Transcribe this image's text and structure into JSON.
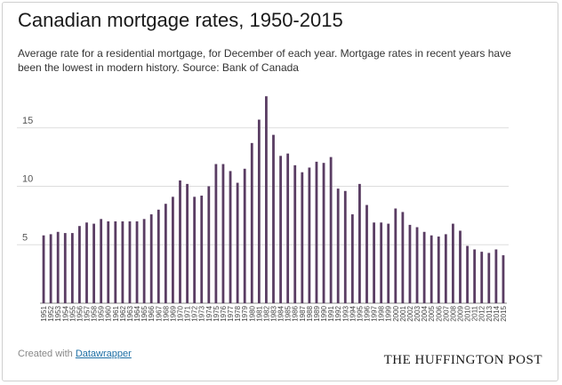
{
  "header": {
    "title": "Canadian mortgage rates, 1950-2015",
    "subtitle": "Average rate for a residential mortgage, for December of each year. Mortgage rates in recent years have been the lowest in modern history. Source: Bank of Canada"
  },
  "footer": {
    "created_with": "Created with ",
    "tool_link": "Datawrapper",
    "brand": "THE HUFFINGTON POST"
  },
  "colors": {
    "bar": "#5a3d63",
    "grid": "#dddddd",
    "axis": "#888888"
  },
  "chart_data": {
    "type": "bar",
    "title": "Canadian mortgage rates, 1950-2015",
    "xlabel": "",
    "ylabel": "",
    "ylim": [
      0,
      18
    ],
    "yticks": [
      5,
      10,
      15
    ],
    "grid": true,
    "categories": [
      "1951",
      "1952",
      "1953",
      "1954",
      "1955",
      "1956",
      "1957",
      "1958",
      "1959",
      "1960",
      "1961",
      "1962",
      "1963",
      "1964",
      "1965",
      "1966",
      "1967",
      "1968",
      "1969",
      "1970",
      "1971",
      "1972",
      "1973",
      "1974",
      "1975",
      "1976",
      "1977",
      "1978",
      "1979",
      "1980",
      "1981",
      "1982",
      "1983",
      "1984",
      "1985",
      "1986",
      "1987",
      "1988",
      "1989",
      "1990",
      "1991",
      "1992",
      "1993",
      "1994",
      "1995",
      "1996",
      "1997",
      "1998",
      "1999",
      "2000",
      "2001",
      "2002",
      "2003",
      "2004",
      "2005",
      "2006",
      "2007",
      "2008",
      "2009",
      "2010",
      "2011",
      "2012",
      "2013",
      "2014",
      "2015"
    ],
    "values": [
      5.8,
      5.9,
      6.1,
      6.0,
      6.0,
      6.6,
      6.9,
      6.8,
      7.2,
      7.0,
      7.0,
      7.0,
      7.0,
      7.0,
      7.2,
      7.6,
      8.0,
      8.5,
      9.1,
      10.5,
      10.2,
      9.1,
      9.2,
      10.0,
      11.9,
      11.9,
      11.3,
      10.3,
      11.5,
      13.7,
      15.7,
      17.7,
      14.4,
      12.6,
      12.8,
      11.8,
      11.2,
      11.6,
      12.1,
      12.0,
      12.5,
      9.8,
      9.6,
      7.6,
      10.2,
      8.4,
      6.9,
      6.9,
      6.8,
      8.1,
      7.8,
      6.7,
      6.5,
      6.1,
      5.8,
      5.7,
      5.9,
      6.8,
      6.2,
      4.9,
      4.6,
      4.4,
      4.3,
      4.6,
      4.1
    ]
  }
}
